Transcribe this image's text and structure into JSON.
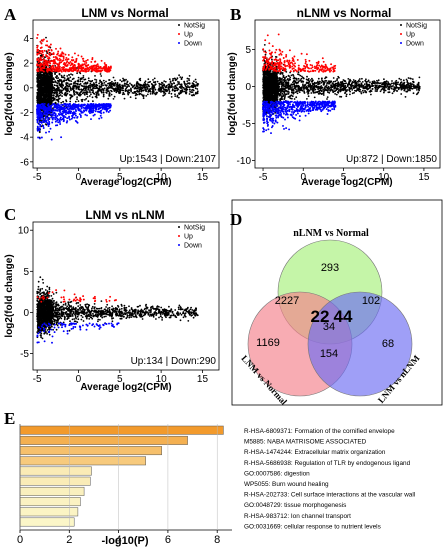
{
  "panels": {
    "A": {
      "label": "A",
      "title": "LNM vs Normal",
      "xlabel": "Average log2(CPM)",
      "ylabel": "log2(fold change)",
      "legend": [
        "NotSig",
        "Up",
        "Down"
      ],
      "summary": "Up:1543 | Down:2107"
    },
    "B": {
      "label": "B",
      "title": "nLNM vs Normal",
      "xlabel": "Average log2(CPM)",
      "ylabel": "log2(fold change)",
      "legend": [
        "NotSig",
        "Up",
        "Down"
      ],
      "summary": "Up:872 | Down:1850"
    },
    "C": {
      "label": "C",
      "title": "LNM vs nLNM",
      "xlabel": "Average log2(CPM)",
      "ylabel": "log2(fold change)",
      "legend": [
        "NotSig",
        "Up",
        "Down"
      ],
      "summary": "Up:134 | Down:290"
    },
    "D": {
      "label": "D",
      "sets": [
        "nLNM vs Normal",
        "LNM vs Normal",
        "LNM vs nLNM"
      ]
    },
    "E": {
      "label": "E"
    }
  },
  "colors": {
    "notsig": "#000000",
    "up": "#ff0000",
    "down": "#0000ff",
    "venn_green": "#a6f07a",
    "venn_red": "#f5808a",
    "venn_blue": "#6b6bf2",
    "bar_dark": "#f29a2c",
    "bar_light": "#fbf6c8",
    "num_blue": "#3a3ae0",
    "num_red": "#d02020"
  },
  "chart_data": [
    {
      "type": "scatter",
      "panel": "A",
      "title": "LNM vs Normal",
      "xlabel": "Average log2(CPM)",
      "ylabel": "log2(fold change)",
      "xlim": [
        -5.5,
        17
      ],
      "ylim": [
        -6.5,
        5.5
      ],
      "xticks": [
        -5,
        0,
        5,
        10,
        15
      ],
      "yticks": [
        -6,
        -4,
        -2,
        0,
        2,
        4
      ],
      "legend_position": "top-right",
      "series": [
        {
          "name": "NotSig",
          "color": "#000000"
        },
        {
          "name": "Up",
          "color": "#ff0000",
          "count": 1543
        },
        {
          "name": "Down",
          "color": "#0000ff",
          "count": 2107
        }
      ]
    },
    {
      "type": "scatter",
      "panel": "B",
      "title": "nLNM vs Normal",
      "xlabel": "Average log2(CPM)",
      "ylabel": "log2(fold change)",
      "xlim": [
        -6,
        17
      ],
      "ylim": [
        -11,
        9
      ],
      "xticks": [
        -5,
        0,
        5,
        10,
        15
      ],
      "yticks": [
        -10,
        -5,
        0,
        5
      ],
      "legend_position": "top-right",
      "series": [
        {
          "name": "NotSig",
          "color": "#000000"
        },
        {
          "name": "Up",
          "color": "#ff0000",
          "count": 872
        },
        {
          "name": "Down",
          "color": "#0000ff",
          "count": 1850
        }
      ]
    },
    {
      "type": "scatter",
      "panel": "C",
      "title": "LNM vs nLNM",
      "xlabel": "Average log2(CPM)",
      "ylabel": "log2(fold change)",
      "xlim": [
        -5.5,
        17
      ],
      "ylim": [
        -7,
        11
      ],
      "xticks": [
        -5,
        0,
        5,
        10,
        15
      ],
      "yticks": [
        -5,
        0,
        5,
        10
      ],
      "legend_position": "top-right",
      "series": [
        {
          "name": "NotSig",
          "color": "#000000"
        },
        {
          "name": "Up",
          "color": "#ff0000",
          "count": 134
        },
        {
          "name": "Down",
          "color": "#0000ff",
          "count": 290
        }
      ]
    },
    {
      "type": "venn",
      "panel": "D",
      "sets": [
        "nLNM vs Normal",
        "LNM vs Normal",
        "LNM vs nLNM"
      ],
      "regions": [
        {
          "sets": [
            "nLNM vs Normal"
          ],
          "value": 293
        },
        {
          "sets": [
            "LNM vs Normal"
          ],
          "value": 1169
        },
        {
          "sets": [
            "LNM vs nLNM"
          ],
          "value": 68
        },
        {
          "sets": [
            "nLNM vs Normal",
            "LNM vs Normal"
          ],
          "value": 2227
        },
        {
          "sets": [
            "nLNM vs Normal",
            "LNM vs nLNM"
          ],
          "value": 102
        },
        {
          "sets": [
            "LNM vs Normal",
            "LNM vs nLNM"
          ],
          "value": 154
        },
        {
          "sets": [
            "nLNM vs Normal",
            "LNM vs Normal",
            "LNM vs nLNM"
          ],
          "value": 34
        }
      ],
      "highlighted": [
        {
          "value": 22,
          "color": "#3a3ae0"
        },
        {
          "value": 44,
          "color": "#d02020"
        }
      ]
    },
    {
      "type": "bar",
      "panel": "E",
      "orientation": "horizontal",
      "xlabel": "-log10(P)",
      "xlim": [
        0,
        8.6
      ],
      "xticks": [
        0,
        2,
        4,
        6,
        8
      ],
      "categories": [
        "R-HSA-6809371: Formation of the cornified envelope",
        "M5885: NABA MATRISOME ASSOCIATED",
        "R-HSA-1474244: Extracellular matrix organization",
        "R-HSA-5686938: Regulation of TLR by endogenous ligand",
        "GO:0007586: digestion",
        "WP5055: Burn wound healing",
        "R-HSA-202733: Cell surface interactions at the vascular wall",
        "GO:0048729: tissue morphogenesis",
        "R-HSA-983712: Ion channel transport",
        "GO:0031669: cellular response to nutrient levels"
      ],
      "values": [
        8.25,
        6.8,
        5.75,
        5.1,
        2.9,
        2.85,
        2.6,
        2.45,
        2.35,
        2.2
      ]
    }
  ]
}
